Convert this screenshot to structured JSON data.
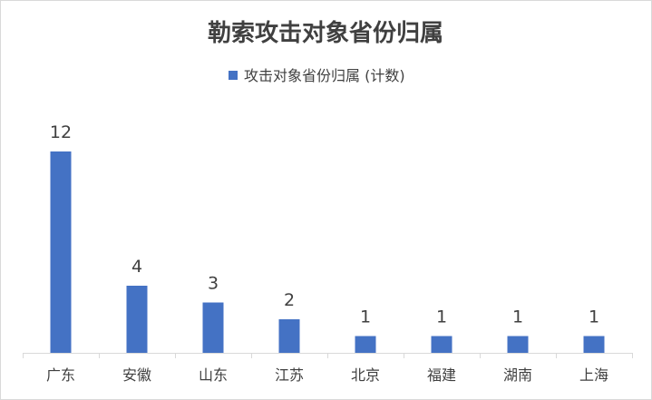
{
  "chart_data": {
    "type": "bar",
    "title": "勒索攻击对象省份归属",
    "legend": {
      "position": "top",
      "entries": [
        "攻击对象省份归属 (计数)"
      ]
    },
    "categories": [
      "广东",
      "安徽",
      "山东",
      "江苏",
      "北京",
      "福建",
      "湖南",
      "上海"
    ],
    "series": [
      {
        "name": "攻击对象省份归属 (计数)",
        "values": [
          12,
          4,
          3,
          2,
          1,
          1,
          1,
          1
        ],
        "color": "#4472c4"
      }
    ],
    "data_labels": true,
    "ylim": [
      0,
      12
    ],
    "grid": false,
    "xlabel": "",
    "ylabel": ""
  }
}
